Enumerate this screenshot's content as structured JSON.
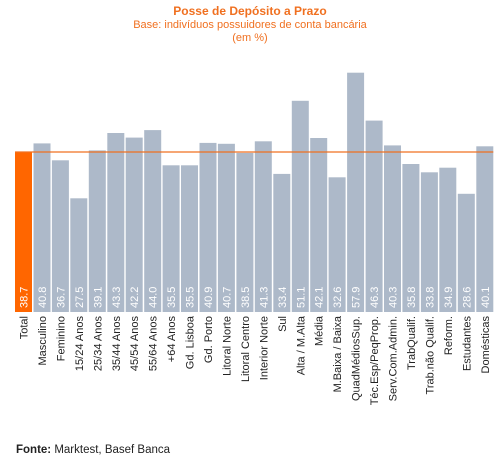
{
  "chart_data": {
    "type": "bar",
    "title": "Posse de Depósito a Prazo",
    "subtitle": "Base: indivíduos possuidores de conta bancária",
    "note": "(em %)",
    "categories": [
      "Total",
      "Masculino",
      "Feminino",
      "15/24 Anos",
      "25/34 Anos",
      "35/44 Anos",
      "45/54 Anos",
      "55/64 Anos",
      "+64 Anos",
      "Gd. Lisboa",
      "Gd. Porto",
      "Litoral Norte",
      "Litoral Centro",
      "Interior Norte",
      "Sul",
      "Alta / M.Alta",
      "Média",
      "M.Baixa / Baixa",
      "QuadMédiosSup.",
      "Téc.Esp/PeqProp.",
      "Serv.Com.Admin.",
      "TrabQualif.",
      "Trab.não Qualif.",
      "Reform.",
      "Estudantes",
      "Domésticas"
    ],
    "values": [
      38.7,
      40.8,
      36.7,
      27.5,
      39.1,
      43.3,
      42.2,
      44.0,
      35.5,
      35.5,
      40.9,
      40.7,
      38.5,
      41.3,
      33.4,
      51.1,
      42.1,
      32.6,
      57.9,
      46.3,
      40.3,
      35.8,
      33.8,
      34.9,
      28.6,
      40.1
    ],
    "value_labels": [
      "38.7",
      "40.8",
      "36.7",
      "27.5",
      "39.1",
      "43.3",
      "42.2",
      "44.0",
      "35.5",
      "35.5",
      "40.9",
      "40.7",
      "38.5",
      "41.3",
      "33.4",
      "51.1",
      "42.1",
      "32.6",
      "57.9",
      "46.3",
      "40.3",
      "35.8",
      "33.8",
      "34.9",
      "28.6",
      "40.1"
    ],
    "reference_line": 38.7,
    "ylim": [
      0,
      60
    ],
    "grid": false,
    "legend": "none",
    "colors": {
      "highlight_bar": "#ff6600",
      "bar": "#adb9c9",
      "reference_line": "#f07020",
      "title": "#f07020"
    }
  },
  "footer": {
    "source_label": "Fonte:",
    "source_text": " Marktest, Basef Banca"
  }
}
